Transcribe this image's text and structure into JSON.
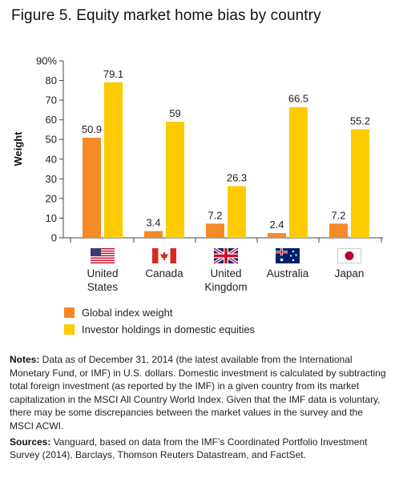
{
  "title": "Figure 5. Equity market home bias by country",
  "colors": {
    "orange": "#F58A27",
    "yellow": "#FDCB00",
    "axis": "#444444",
    "text": "#222222"
  },
  "chart_data": {
    "type": "bar",
    "ylabel": "Weight",
    "ylim": [
      0,
      90
    ],
    "ytick_labels": [
      "0",
      "10",
      "20",
      "30",
      "40",
      "50",
      "60",
      "70",
      "80",
      "90%"
    ],
    "grid": false,
    "legend_position": "bottom-left",
    "categories": [
      {
        "label_lines": [
          "United",
          "States"
        ],
        "flag": "us-flag"
      },
      {
        "label_lines": [
          "Canada"
        ],
        "flag": "canada-flag"
      },
      {
        "label_lines": [
          "United",
          "Kingdom"
        ],
        "flag": "uk-flag"
      },
      {
        "label_lines": [
          "Australia"
        ],
        "flag": "australia-flag"
      },
      {
        "label_lines": [
          "Japan"
        ],
        "flag": "japan-flag"
      }
    ],
    "series": [
      {
        "name": "Global index weight",
        "color": "#F58A27",
        "values": [
          50.9,
          3.4,
          7.2,
          2.4,
          7.2
        ],
        "value_labels": [
          "50.9",
          "3.4",
          "7.2",
          "2.4",
          "7.2"
        ]
      },
      {
        "name": "Investor holdings in domestic equities",
        "color": "#FDCB00",
        "values": [
          79.1,
          59,
          26.3,
          66.5,
          55.2
        ],
        "value_labels": [
          "79.1",
          "59",
          "26.3",
          "66.5",
          "55.2"
        ]
      }
    ]
  },
  "notes": {
    "label": "Notes:",
    "text": " Data as of December 31, 2014 (the latest available from the International Monetary Fund, or IMF) in U.S. dollars. Domestic investment is calculated by subtracting total foreign investment (as reported by the IMF) in a given country from its market capitalization in the MSCI All Country World Index. Given that the IMF data is voluntary, there may be some discrepancies between the market values in the survey and the MSCI ACWI."
  },
  "sources": {
    "label": "Sources:",
    "text": " Vanguard, based on data from the IMF’s Coordinated Portfolio Investment Survey (2014), Barclays, Thomson Reuters Datastream, and FactSet."
  }
}
